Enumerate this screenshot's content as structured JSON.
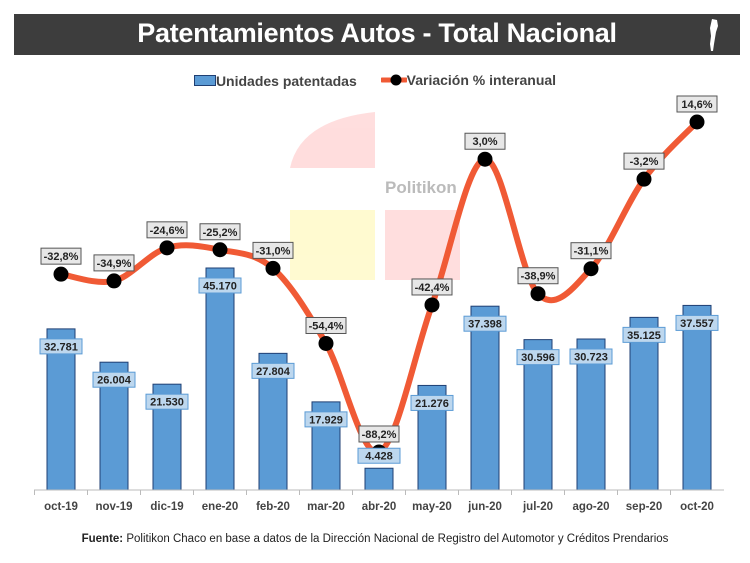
{
  "header": {
    "title": "Patentamientos Autos - Total Nacional"
  },
  "watermark": "Politikon",
  "chart_data": {
    "type": "bar+line",
    "categories": [
      "oct-19",
      "nov-19",
      "dic-19",
      "ene-20",
      "feb-20",
      "mar-20",
      "abr-20",
      "may-20",
      "jun-20",
      "jul-20",
      "ago-20",
      "sep-20",
      "oct-20"
    ],
    "series": [
      {
        "name": "Unidades patentadas",
        "type": "bar",
        "color": "#5b9bd5",
        "values": [
          32781,
          26004,
          21530,
          45170,
          27804,
          17929,
          4428,
          21276,
          37398,
          30596,
          30723,
          35125,
          37557
        ],
        "labels": [
          "32.781",
          "26.004",
          "21.530",
          "45.170",
          "27.804",
          "17.929",
          "4.428",
          "21.276",
          "37.398",
          "30.596",
          "30.723",
          "35.125",
          "37.557"
        ]
      },
      {
        "name": "Variación % interanual",
        "type": "line",
        "color": "#f05a35",
        "marker_color": "#000000",
        "values": [
          -32.8,
          -34.9,
          -24.6,
          -25.2,
          -31.0,
          -54.4,
          -88.2,
          -42.4,
          3.0,
          -38.9,
          -31.1,
          -3.2,
          14.6
        ],
        "labels": [
          "-32,8%",
          "-34,9%",
          "-24,6%",
          "-25,2%",
          "-31,0%",
          "-54,4%",
          "-88,2%",
          "-42,4%",
          "3,0%",
          "-38,9%",
          "-31,1%",
          "-3,2%",
          "14,6%"
        ]
      }
    ],
    "legend_position": "top",
    "grid": false
  },
  "footer": {
    "source_label": "Fuente:",
    "source_text": " Politikon Chaco en base a datos de la Dirección Nacional de Registro del Automotor y Créditos Prendarios"
  }
}
